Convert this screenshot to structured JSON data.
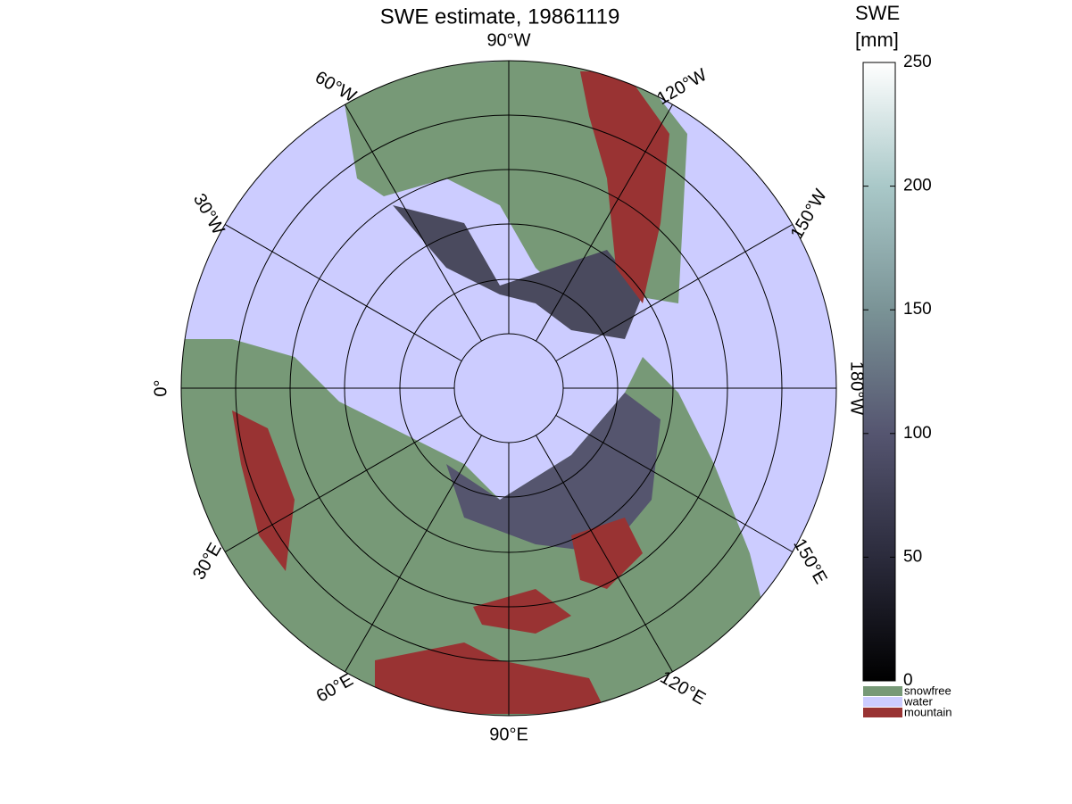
{
  "title": "SWE estimate, 19861119",
  "lon_ticks": [
    {
      "value": 0,
      "label": "0°"
    },
    {
      "value": 30,
      "label": "30°E"
    },
    {
      "value": 60,
      "label": "60°E"
    },
    {
      "value": 90,
      "label": "90°E"
    },
    {
      "value": 120,
      "label": "120°E"
    },
    {
      "value": 150,
      "label": "150°E"
    },
    {
      "value": 180,
      "label": "180°W"
    },
    {
      "value": -150,
      "label": "150°W"
    },
    {
      "value": -120,
      "label": "120°W"
    },
    {
      "value": -90,
      "label": "90°W"
    },
    {
      "value": -60,
      "label": "60°W"
    },
    {
      "value": -30,
      "label": "30°W"
    }
  ],
  "colorbar": {
    "title": [
      "SWE",
      "[mm]"
    ],
    "lim": [
      0,
      250
    ],
    "ticks": [
      0,
      50,
      100,
      150,
      200,
      250
    ]
  },
  "legend": [
    {
      "label": "snowfree",
      "color": "#779977"
    },
    {
      "label": "water",
      "color": "#ccccff"
    },
    {
      "label": "mountain",
      "color": "#993333"
    }
  ]
}
